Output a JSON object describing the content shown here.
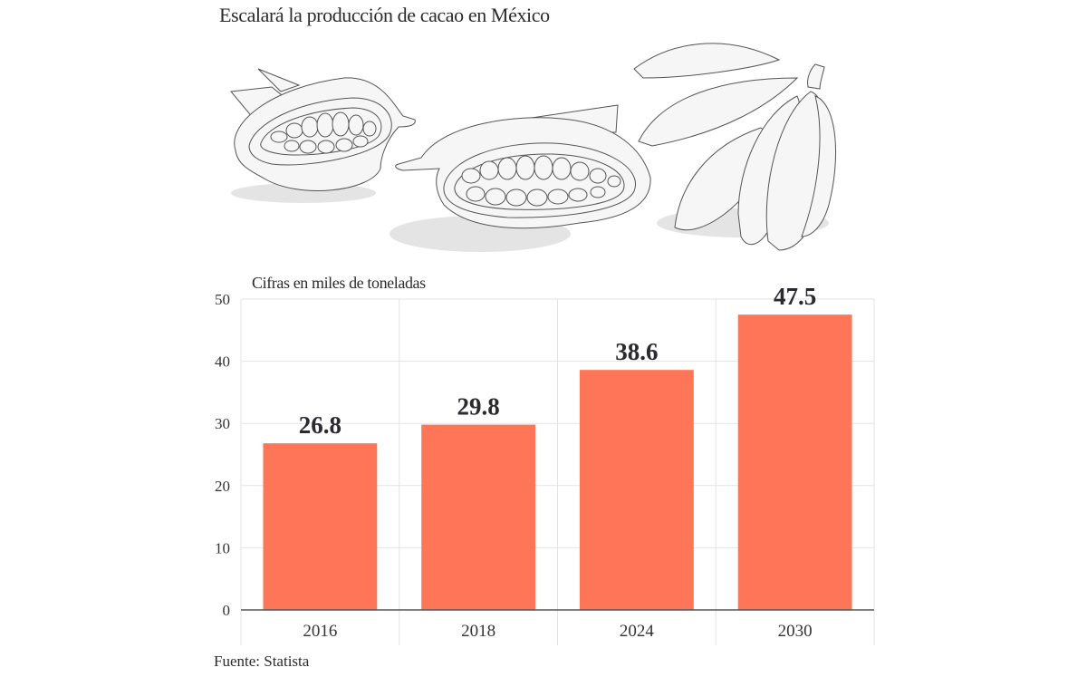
{
  "title": "Escalará la producción de cacao en México",
  "illustration": {
    "subject": "cacao-pods-illustration"
  },
  "source": "Fuente: Statista",
  "colors": {
    "bar": "#ff7557",
    "grid": "#e3e3e3",
    "axis": "#555555",
    "text": "#2a2a30"
  },
  "chart_data": {
    "type": "bar",
    "title": "Escalará la producción de cacao en México",
    "ylabel": "Cifras en miles de toneladas",
    "xlabel": "",
    "categories": [
      "2016",
      "2018",
      "2024",
      "2030"
    ],
    "values": [
      26.8,
      29.8,
      38.6,
      47.5
    ],
    "value_labels": [
      "26.8",
      "29.8",
      "38.6",
      "47.5"
    ],
    "ylim": [
      0,
      50
    ],
    "yticks": [
      0,
      10,
      20,
      30,
      40,
      50
    ],
    "grid": true,
    "legend": "none",
    "source": "Fuente: Statista"
  }
}
